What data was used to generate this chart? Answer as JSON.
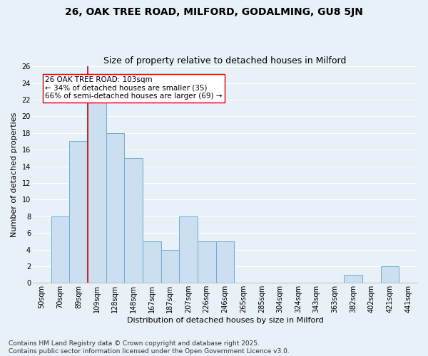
{
  "title_line1": "26, OAK TREE ROAD, MILFORD, GODALMING, GU8 5JN",
  "title_line2": "Size of property relative to detached houses in Milford",
  "xlabel": "Distribution of detached houses by size in Milford",
  "ylabel": "Number of detached properties",
  "categories": [
    "50sqm",
    "70sqm",
    "89sqm",
    "109sqm",
    "128sqm",
    "148sqm",
    "167sqm",
    "187sqm",
    "207sqm",
    "226sqm",
    "246sqm",
    "265sqm",
    "285sqm",
    "304sqm",
    "324sqm",
    "343sqm",
    "363sqm",
    "382sqm",
    "402sqm",
    "421sqm",
    "441sqm"
  ],
  "values": [
    0,
    8,
    17,
    22,
    18,
    15,
    5,
    4,
    8,
    5,
    5,
    0,
    0,
    0,
    0,
    0,
    0,
    1,
    0,
    2,
    0
  ],
  "bar_color": "#ccdff0",
  "bar_edge_color": "#6aaed6",
  "vline_color": "#cc0000",
  "vline_x_index": 2.5,
  "annotation_text": "26 OAK TREE ROAD: 103sqm\n← 34% of detached houses are smaller (35)\n66% of semi-detached houses are larger (69) →",
  "annotation_box_facecolor": "#ffffff",
  "annotation_box_edgecolor": "#cc0000",
  "ylim": [
    0,
    26
  ],
  "yticks": [
    0,
    2,
    4,
    6,
    8,
    10,
    12,
    14,
    16,
    18,
    20,
    22,
    24,
    26
  ],
  "background_color": "#e8f0f8",
  "grid_color": "#ffffff",
  "footer": "Contains HM Land Registry data © Crown copyright and database right 2025.\nContains public sector information licensed under the Open Government Licence v3.0.",
  "title_fontsize": 10,
  "subtitle_fontsize": 9,
  "axis_label_fontsize": 8,
  "tick_fontsize": 7,
  "annotation_fontsize": 7.5,
  "footer_fontsize": 6.5,
  "ylabel_fontsize": 8
}
